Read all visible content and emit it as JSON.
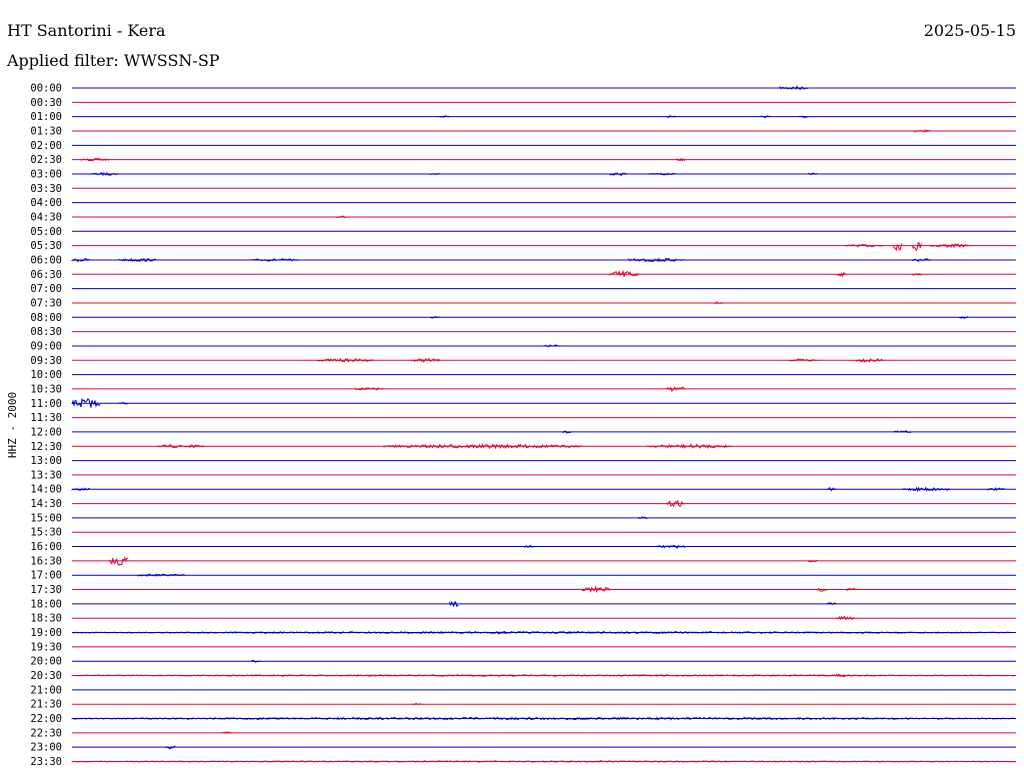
{
  "header": {
    "station": "HT Santorini - Kera",
    "date": "2025-05-15",
    "filter": "Applied filter: WWSSN-SP"
  },
  "colors": {
    "blue": "#0000cc",
    "red": "#e8002e",
    "background": "#ffffff",
    "text": "#000000"
  },
  "chart_data": {
    "type": "line",
    "title": "HT Santorini - Kera",
    "ylabel": "HHZ - 2000",
    "grid": false,
    "row_colors": [
      "blue",
      "red"
    ],
    "times": [
      "00:00",
      "00:30",
      "01:00",
      "01:30",
      "02:00",
      "02:30",
      "03:00",
      "03:30",
      "04:00",
      "04:30",
      "05:00",
      "05:30",
      "06:00",
      "06:30",
      "07:00",
      "07:30",
      "08:00",
      "08:30",
      "09:00",
      "09:30",
      "10:00",
      "10:30",
      "11:00",
      "11:30",
      "12:00",
      "12:30",
      "13:00",
      "13:30",
      "14:00",
      "14:30",
      "15:00",
      "15:30",
      "16:00",
      "16:30",
      "17:00",
      "17:30",
      "18:00",
      "18:30",
      "19:00",
      "19:30",
      "20:00",
      "20:30",
      "21:00",
      "21:30",
      "22:00",
      "22:30",
      "23:00",
      "23:30"
    ],
    "activity": [
      {
        "time": "00:00",
        "bursts": [
          [
            0.75,
            0.78,
            0.3
          ]
        ]
      },
      {
        "time": "01:00",
        "bursts": [
          [
            0.39,
            0.4,
            0.2
          ],
          [
            0.63,
            0.64,
            0.2
          ],
          [
            0.73,
            0.74,
            0.2
          ],
          [
            0.77,
            0.78,
            0.2
          ]
        ]
      },
      {
        "time": "01:30",
        "bursts": [
          [
            0.89,
            0.91,
            0.2
          ]
        ]
      },
      {
        "time": "02:30",
        "bursts": [
          [
            0.01,
            0.04,
            0.2
          ],
          [
            0.64,
            0.65,
            0.2
          ]
        ]
      },
      {
        "time": "03:00",
        "bursts": [
          [
            0.02,
            0.05,
            0.2
          ],
          [
            0.38,
            0.39,
            0.2
          ],
          [
            0.57,
            0.59,
            0.25
          ],
          [
            0.61,
            0.64,
            0.15
          ],
          [
            0.78,
            0.79,
            0.15
          ]
        ]
      },
      {
        "time": "04:30",
        "bursts": [
          [
            0.28,
            0.29,
            0.2
          ]
        ]
      },
      {
        "time": "05:30",
        "bursts": [
          [
            0.82,
            0.86,
            0.2
          ],
          [
            0.87,
            0.88,
            0.8
          ],
          [
            0.89,
            0.9,
            0.9
          ],
          [
            0.91,
            0.95,
            0.3
          ]
        ]
      },
      {
        "time": "06:00",
        "bursts": [
          [
            0.0,
            0.02,
            0.3
          ],
          [
            0.05,
            0.09,
            0.25
          ],
          [
            0.19,
            0.24,
            0.2
          ],
          [
            0.59,
            0.65,
            0.3
          ],
          [
            0.89,
            0.91,
            0.3
          ]
        ]
      },
      {
        "time": "06:30",
        "bursts": [
          [
            0.57,
            0.6,
            0.6
          ],
          [
            0.81,
            0.82,
            0.3
          ],
          [
            0.89,
            0.9,
            0.2
          ]
        ]
      },
      {
        "time": "07:30",
        "bursts": [
          [
            0.68,
            0.69,
            0.2
          ]
        ]
      },
      {
        "time": "08:00",
        "bursts": [
          [
            0.38,
            0.39,
            0.2
          ],
          [
            0.94,
            0.95,
            0.2
          ]
        ]
      },
      {
        "time": "09:00",
        "bursts": [
          [
            0.5,
            0.52,
            0.2
          ]
        ]
      },
      {
        "time": "09:30",
        "bursts": [
          [
            0.26,
            0.32,
            0.25
          ],
          [
            0.36,
            0.39,
            0.3
          ],
          [
            0.76,
            0.79,
            0.2
          ],
          [
            0.83,
            0.86,
            0.3
          ]
        ]
      },
      {
        "time": "10:30",
        "bursts": [
          [
            0.3,
            0.33,
            0.2
          ],
          [
            0.63,
            0.65,
            0.4
          ]
        ]
      },
      {
        "time": "11:00",
        "bursts": [
          [
            0.0,
            0.03,
            0.8
          ],
          [
            0.05,
            0.06,
            0.2
          ]
        ]
      },
      {
        "time": "12:00",
        "bursts": [
          [
            0.52,
            0.53,
            0.2
          ],
          [
            0.87,
            0.89,
            0.2
          ]
        ]
      },
      {
        "time": "12:30",
        "bursts": [
          [
            0.09,
            0.14,
            0.25
          ],
          [
            0.33,
            0.54,
            0.3
          ],
          [
            0.61,
            0.7,
            0.3
          ]
        ]
      },
      {
        "time": "14:00",
        "bursts": [
          [
            0.0,
            0.02,
            0.2
          ],
          [
            0.8,
            0.81,
            0.3
          ],
          [
            0.88,
            0.93,
            0.3
          ],
          [
            0.97,
            0.99,
            0.2
          ]
        ]
      },
      {
        "time": "14:30",
        "bursts": [
          [
            0.63,
            0.65,
            0.5
          ]
        ]
      },
      {
        "time": "15:00",
        "bursts": [
          [
            0.6,
            0.61,
            0.2
          ]
        ]
      },
      {
        "time": "16:00",
        "bursts": [
          [
            0.48,
            0.49,
            0.2
          ],
          [
            0.62,
            0.65,
            0.25
          ]
        ]
      },
      {
        "time": "16:30",
        "bursts": [
          [
            0.04,
            0.06,
            0.8
          ],
          [
            0.78,
            0.79,
            0.2
          ]
        ]
      },
      {
        "time": "17:00",
        "bursts": [
          [
            0.07,
            0.12,
            0.2
          ]
        ]
      },
      {
        "time": "17:30",
        "bursts": [
          [
            0.54,
            0.57,
            0.5
          ],
          [
            0.79,
            0.8,
            0.3
          ],
          [
            0.82,
            0.83,
            0.3
          ]
        ]
      },
      {
        "time": "18:00",
        "bursts": [
          [
            0.4,
            0.41,
            0.5
          ],
          [
            0.8,
            0.81,
            0.3
          ]
        ]
      },
      {
        "time": "18:30",
        "bursts": [
          [
            0.81,
            0.83,
            0.3
          ]
        ]
      },
      {
        "time": "19:00",
        "bursts": [
          [
            0.0,
            1.0,
            0.15
          ],
          [
            0.45,
            0.46,
            0.3
          ]
        ]
      },
      {
        "time": "20:00",
        "bursts": [
          [
            0.19,
            0.2,
            0.2
          ]
        ]
      },
      {
        "time": "20:30",
        "bursts": [
          [
            0.0,
            1.0,
            0.12
          ],
          [
            0.81,
            0.82,
            0.3
          ]
        ]
      },
      {
        "time": "21:30",
        "bursts": [
          [
            0.36,
            0.37,
            0.25
          ]
        ]
      },
      {
        "time": "22:00",
        "bursts": [
          [
            0.0,
            1.0,
            0.18
          ]
        ]
      },
      {
        "time": "22:30",
        "bursts": [
          [
            0.16,
            0.17,
            0.2
          ]
        ]
      },
      {
        "time": "23:00",
        "bursts": [
          [
            0.1,
            0.11,
            0.25
          ]
        ]
      },
      {
        "time": "23:30",
        "bursts": [
          [
            0.0,
            1.0,
            0.1
          ]
        ]
      }
    ]
  }
}
